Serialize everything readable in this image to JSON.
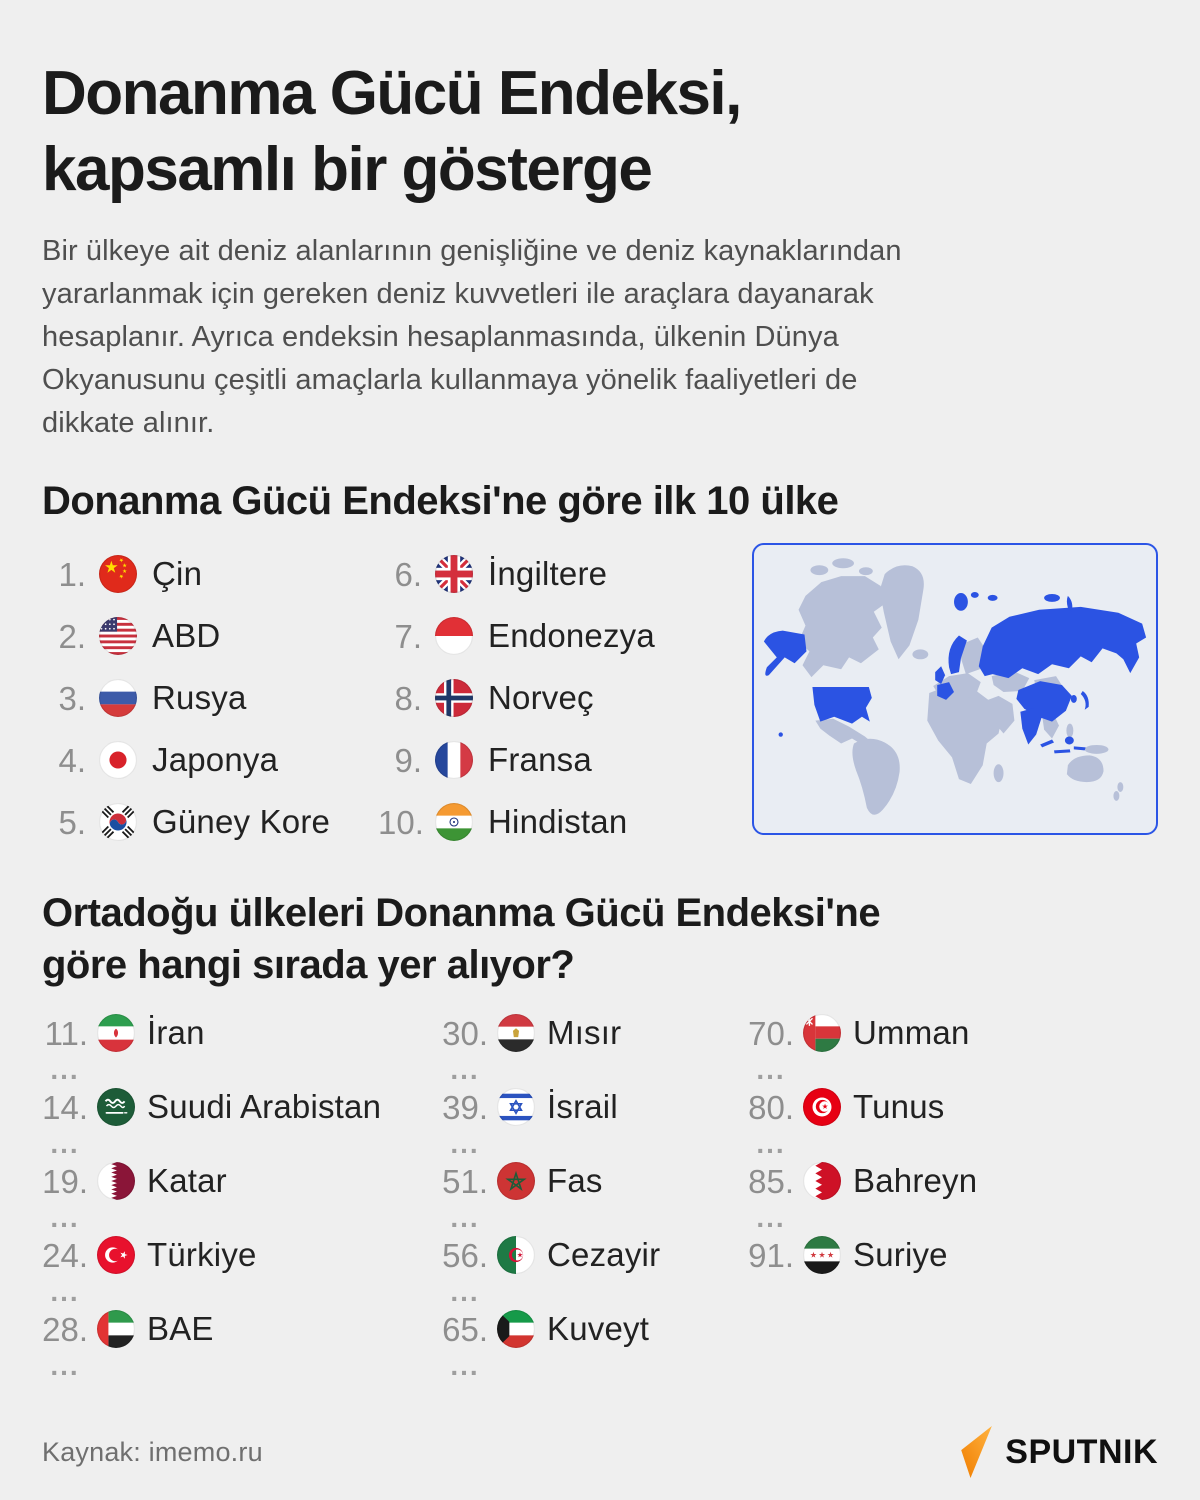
{
  "title": "Donanma Gücü Endeksi,\nkapsamlı bir gösterge",
  "intro": "Bir ülkeye ait deniz alanlarının genişliğine ve deniz kaynaklarından\nyararlanmak için gereken deniz kuvvetleri ile araçlara dayanarak\nhesaplanır. Ayrıca endeksin hesaplanmasında, ülkenin Dünya\nOkyanusunu çeşitli amaçlarla kullanmaya yönelik faaliyetleri de\ndikkate alınır.",
  "top10": {
    "heading": "Donanma Gücü Endeksi'ne göre ilk 10 ülke",
    "left": [
      {
        "rank": "1.",
        "name": "Çin",
        "flag": "cn"
      },
      {
        "rank": "2.",
        "name": "ABD",
        "flag": "us"
      },
      {
        "rank": "3.",
        "name": "Rusya",
        "flag": "ru"
      },
      {
        "rank": "4.",
        "name": "Japonya",
        "flag": "jp"
      },
      {
        "rank": "5.",
        "name": "Güney Kore",
        "flag": "kr"
      }
    ],
    "right": [
      {
        "rank": "6.",
        "name": "İngiltere",
        "flag": "gb"
      },
      {
        "rank": "7.",
        "name": "Endonezya",
        "flag": "id"
      },
      {
        "rank": "8.",
        "name": "Norveç",
        "flag": "no"
      },
      {
        "rank": "9.",
        "name": "Fransa",
        "flag": "fr"
      },
      {
        "rank": "10.",
        "name": "Hindistan",
        "flag": "in"
      }
    ]
  },
  "map": {
    "background": "#e9edf3",
    "border_color": "#2b55e6",
    "land_color": "#b7c0d8",
    "highlight_color": "#2b53e3",
    "highlighted": [
      "Çin",
      "ABD",
      "Rusya",
      "Japonya",
      "Güney Kore",
      "İngiltere",
      "Endonezya",
      "Norveç",
      "Fransa",
      "Hindistan"
    ]
  },
  "mideast": {
    "heading": "Ortadoğu ülkeleri Donanma Gücü Endeksi'ne\ngöre hangi sırada yer alıyor?",
    "ellipsis": "...",
    "columns": [
      [
        {
          "rank": "11.",
          "name": "İran",
          "flag": "ir",
          "ellipsis": true
        },
        {
          "rank": "14.",
          "name": "Suudi Arabistan",
          "flag": "sa",
          "ellipsis": true
        },
        {
          "rank": "19.",
          "name": "Katar",
          "flag": "qa",
          "ellipsis": true
        },
        {
          "rank": "24.",
          "name": "Türkiye",
          "flag": "tr",
          "ellipsis": true
        },
        {
          "rank": "28.",
          "name": "BAE",
          "flag": "ae",
          "ellipsis": true
        }
      ],
      [
        {
          "rank": "30.",
          "name": "Mısır",
          "flag": "eg",
          "ellipsis": true
        },
        {
          "rank": "39.",
          "name": "İsrail",
          "flag": "il",
          "ellipsis": true
        },
        {
          "rank": "51.",
          "name": "Fas",
          "flag": "ma",
          "ellipsis": true
        },
        {
          "rank": "56.",
          "name": "Cezayir",
          "flag": "dz",
          "ellipsis": true
        },
        {
          "rank": "65.",
          "name": "Kuveyt",
          "flag": "kw",
          "ellipsis": true
        }
      ],
      [
        {
          "rank": "70.",
          "name": "Umman",
          "flag": "om",
          "ellipsis": true
        },
        {
          "rank": "80.",
          "name": "Tunus",
          "flag": "tn",
          "ellipsis": true
        },
        {
          "rank": "85.",
          "name": "Bahreyn",
          "flag": "bh",
          "ellipsis": true
        },
        {
          "rank": "91.",
          "name": "Suriye",
          "flag": "sy",
          "ellipsis": false
        }
      ]
    ]
  },
  "footer": {
    "source": "Kaynak: imemo.ru",
    "brand": "SPUTNIK",
    "brand_color": "#f7941d"
  }
}
